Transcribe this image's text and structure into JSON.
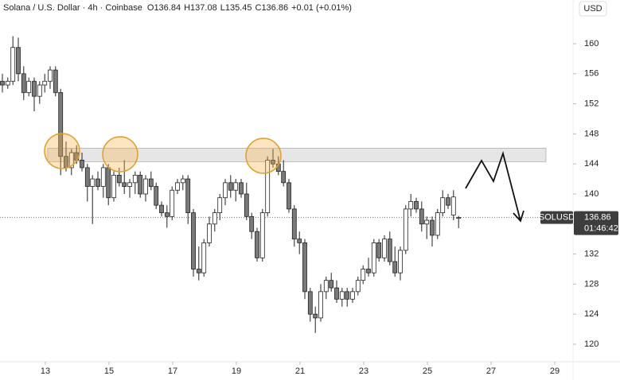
{
  "chart_data": {
    "type": "candlestick",
    "title": "Solana / U.S. Dollar · 4h · Coinbase",
    "ohlc_labels": [
      "O",
      "H",
      "L",
      "C"
    ],
    "ohlc": [
      136.84,
      137.08,
      135.45,
      136.86
    ],
    "change": "+0.01 (+0.01%)",
    "currency": "USD",
    "symbol": "SOLUSD",
    "last_price": 136.86,
    "countdown": "01:46:42",
    "up_color": "#ffffff",
    "down_color": "#7a7a7a",
    "wick_color": "#222222",
    "zone_color": "#e6e6e6",
    "resistance_zone": [
      144.3,
      146.1
    ],
    "x": [
      11.65,
      11.82,
      11.98,
      12.15,
      12.32,
      12.48,
      12.65,
      12.82,
      12.98,
      13.15,
      13.32,
      13.48,
      13.65,
      13.82,
      13.98,
      14.15,
      14.32,
      14.48,
      14.65,
      14.82,
      14.98,
      15.15,
      15.32,
      15.48,
      15.65,
      15.82,
      15.98,
      16.15,
      16.32,
      16.48,
      16.65,
      16.82,
      16.98,
      17.15,
      17.32,
      17.48,
      17.65,
      17.82,
      17.98,
      18.15,
      18.32,
      18.48,
      18.65,
      18.82,
      18.98,
      19.15,
      19.32,
      19.48,
      19.65,
      19.82,
      19.98,
      20.15,
      20.32,
      20.48,
      20.65,
      20.82,
      20.98,
      21.15,
      21.32,
      21.48,
      21.65,
      21.82,
      21.98,
      22.15,
      22.32,
      22.48,
      22.65,
      22.82,
      22.98,
      23.15,
      23.32,
      23.48,
      23.65,
      23.82,
      23.98,
      24.15,
      24.32,
      24.48,
      24.65,
      24.82,
      24.98,
      25.15,
      25.32,
      25.48,
      25.65,
      25.82,
      25.98
    ],
    "open": [
      155,
      154.5,
      155,
      159.5,
      156,
      153.5,
      155,
      153,
      154.5,
      155,
      156.5,
      153.5,
      145,
      143.5,
      145.5,
      144.5,
      143.5,
      141,
      142,
      141,
      143.5,
      139.5,
      142.5,
      141.5,
      141,
      141.5,
      142.5,
      140,
      142,
      141,
      138.5,
      137.5,
      137,
      140.5,
      141.5,
      142,
      137.5,
      130,
      129.5,
      133.5,
      136,
      137.5,
      139.5,
      141.5,
      140.5,
      141.5,
      140,
      137,
      135,
      131.5,
      137.5,
      144.5,
      144,
      143,
      141.5,
      138,
      134,
      133.5,
      127,
      124,
      123.5,
      127,
      128.5,
      127.5,
      126,
      127,
      126,
      127,
      128.5,
      130,
      129.5,
      133.5,
      131.5,
      134,
      131,
      129.5,
      132.5,
      138,
      139,
      138,
      136,
      136.5,
      134.5,
      137.5,
      139.5,
      137.2,
      136.84
    ],
    "high": [
      156,
      155.5,
      161,
      160.8,
      157,
      155.5,
      155.5,
      155,
      156,
      157,
      157,
      154,
      147,
      146,
      146.5,
      145.5,
      144,
      142.5,
      143,
      144,
      144,
      143,
      143.5,
      144.5,
      142,
      143,
      143,
      142.5,
      143,
      141.5,
      139,
      138.5,
      141,
      142,
      142.5,
      142.5,
      138,
      133,
      134,
      137,
      138,
      140,
      142,
      142.5,
      142,
      142,
      141.5,
      137.5,
      135.5,
      138,
      145,
      146,
      145,
      144.5,
      142,
      138.5,
      135,
      134,
      127.5,
      125,
      128,
      129,
      129.5,
      128.5,
      127.5,
      127.5,
      127.5,
      129,
      130.5,
      131.5,
      134,
      134,
      134.5,
      135,
      133,
      133,
      138.5,
      140,
      139.5,
      139,
      137,
      137,
      138,
      140.5,
      140,
      140.5,
      137.08
    ],
    "low": [
      153.5,
      154,
      154.5,
      155,
      152.5,
      153,
      151,
      152,
      153.5,
      154,
      153,
      142.5,
      143,
      142.5,
      144,
      143,
      139,
      136,
      140.5,
      139.5,
      138.5,
      139,
      141,
      140,
      139.5,
      140,
      139.5,
      139,
      140.5,
      138,
      137,
      135.5,
      136.5,
      140,
      140.5,
      136,
      129,
      128.5,
      129,
      133,
      135,
      136.5,
      138.5,
      139.5,
      139,
      139.5,
      136.5,
      134,
      131,
      131,
      137,
      143.5,
      142.5,
      141,
      137.5,
      133,
      132,
      126,
      123,
      121.5,
      123,
      126,
      127,
      125.5,
      125,
      125,
      125.5,
      126.5,
      128,
      129,
      129,
      131,
      131,
      130.5,
      129,
      128.5,
      132,
      137,
      137.5,
      135,
      134,
      133,
      134,
      137,
      138,
      136.5,
      135.45
    ],
    "close": [
      154.5,
      155,
      159.5,
      156,
      153.5,
      155,
      153,
      154.5,
      155,
      156.5,
      153.5,
      145,
      143.5,
      145.5,
      144.5,
      143.5,
      141,
      142,
      141,
      143.5,
      139.5,
      142.5,
      141.5,
      141,
      141.5,
      142.5,
      140,
      142,
      141,
      138.5,
      137.5,
      137,
      140.5,
      141.5,
      142,
      137.5,
      130,
      129.5,
      133.5,
      136,
      137.5,
      139.5,
      141.5,
      140.5,
      141.5,
      140,
      137,
      135,
      131.5,
      137.5,
      144.5,
      144,
      143,
      141.5,
      138,
      134,
      133.5,
      127,
      124,
      123.5,
      127,
      128.5,
      127.5,
      126,
      127,
      126,
      127,
      128.5,
      130,
      129.5,
      133.5,
      131.5,
      134,
      131,
      129.5,
      132.5,
      138,
      139,
      138,
      136,
      136.5,
      134.5,
      137.5,
      139.5,
      138.5,
      139.6,
      136.86
    ],
    "xlim": [
      11.575,
      29.575
    ],
    "ylim": [
      117.67,
      165.82
    ],
    "xticks": [
      13,
      15,
      17,
      19,
      21,
      23,
      25,
      27,
      29
    ],
    "yticks": [
      120,
      124,
      128,
      132,
      136,
      140,
      144,
      148,
      152,
      156,
      160
    ]
  }
}
